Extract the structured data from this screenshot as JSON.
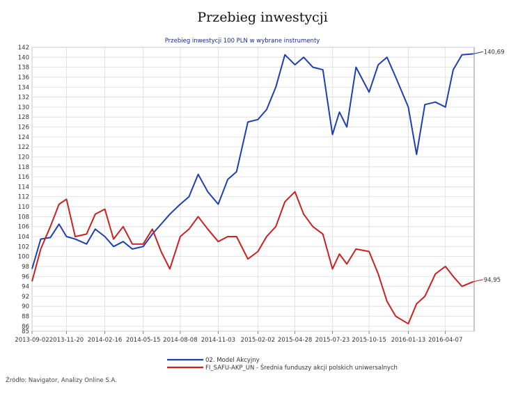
{
  "title": "Przebieg inwestycji",
  "subtitle": "Przebieg inwestycji 100 PLN w wybrane instrumenty",
  "source": "Źródło: Navigator, Analizy Online S.A.",
  "chart_data": {
    "type": "line",
    "title": "Przebieg inwestycji",
    "subtitle": "Przebieg inwestycji 100 PLN w wybrane instrumenty",
    "xlabel": "",
    "ylabel": "",
    "grid": true,
    "legend_position": "bottom",
    "xlim": [
      "2013-09-02",
      "2016-06-12"
    ],
    "ylim": [
      85,
      142
    ],
    "y_ticks": [
      85,
      86,
      88,
      90,
      92,
      94,
      96,
      98,
      100,
      102,
      104,
      106,
      108,
      110,
      112,
      114,
      116,
      118,
      120,
      122,
      124,
      126,
      128,
      130,
      132,
      134,
      136,
      138,
      140,
      142
    ],
    "x_tick_labels": [
      "2013-09-02",
      "2013-11-20",
      "2014-02-16",
      "2014-05-15",
      "2014-08-08",
      "2014-11-03",
      "2015-02-02",
      "2015-04-28",
      "2015-07-23",
      "2015-10-15",
      "2016-01-13",
      "2016-04-07"
    ],
    "x": [
      "2013-09-02",
      "2013-09-22",
      "2013-10-14",
      "2013-11-03",
      "2013-11-20",
      "2013-12-10",
      "2014-01-05",
      "2014-01-25",
      "2014-02-16",
      "2014-03-08",
      "2014-03-30",
      "2014-04-20",
      "2014-05-15",
      "2014-06-05",
      "2014-06-25",
      "2014-07-15",
      "2014-08-08",
      "2014-08-28",
      "2014-09-18",
      "2014-10-10",
      "2014-11-03",
      "2014-11-25",
      "2014-12-15",
      "2015-01-10",
      "2015-02-02",
      "2015-02-22",
      "2015-03-15",
      "2015-04-05",
      "2015-04-28",
      "2015-05-18",
      "2015-06-08",
      "2015-07-01",
      "2015-07-23",
      "2015-08-08",
      "2015-08-25",
      "2015-09-15",
      "2015-10-15",
      "2015-11-05",
      "2015-11-25",
      "2015-12-15",
      "2016-01-13",
      "2016-02-01",
      "2016-02-20",
      "2016-03-15",
      "2016-04-07",
      "2016-04-25",
      "2016-05-15",
      "2016-06-10"
    ],
    "series": [
      {
        "name": "02. Model Akcyjny",
        "color": "#1f3fb0",
        "values": [
          97.5,
          103.5,
          103.8,
          106.5,
          104.0,
          103.5,
          102.5,
          105.5,
          104.0,
          102.0,
          103.0,
          101.5,
          102.0,
          104.5,
          106.5,
          108.5,
          110.5,
          112.0,
          116.5,
          113.0,
          110.5,
          115.5,
          117.0,
          127.0,
          127.5,
          129.5,
          134.0,
          140.5,
          138.5,
          140.0,
          138.0,
          137.5,
          124.5,
          129.0,
          126.0,
          138.0,
          133.0,
          138.5,
          140.0,
          136.0,
          130.0,
          120.5,
          130.5,
          131.0,
          130.0,
          137.5,
          140.5,
          140.69
        ],
        "end_label": "140,69"
      },
      {
        "name": "FI_SAFU-AKP_UN - Średnia funduszy akcji polskich uniwersalnych",
        "color": "#cc1f1f",
        "values": [
          95.0,
          101.5,
          106.0,
          110.5,
          111.5,
          104.0,
          104.5,
          108.5,
          109.5,
          103.5,
          106.0,
          102.5,
          102.5,
          105.5,
          101.0,
          97.5,
          104.0,
          105.5,
          108.0,
          105.5,
          103.0,
          104.0,
          104.0,
          99.5,
          101.0,
          104.0,
          106.0,
          111.0,
          113.0,
          108.5,
          106.0,
          104.5,
          97.5,
          100.5,
          98.5,
          101.5,
          101.0,
          96.5,
          91.0,
          88.0,
          86.5,
          90.5,
          92.0,
          96.5,
          98.0,
          96.0,
          94.0,
          94.95
        ],
        "end_label": "94,95"
      }
    ]
  }
}
